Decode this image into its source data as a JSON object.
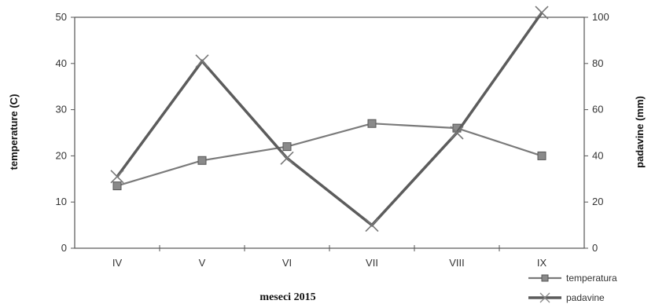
{
  "chart_data": {
    "type": "line",
    "title": "",
    "xlabel": "meseci 2015",
    "ylabel": "temperature (C)",
    "ylabel_right": "padavine (mm)",
    "categories": [
      "IV",
      "V",
      "VI",
      "VII",
      "VIII",
      "IX"
    ],
    "ylim": [
      0,
      50
    ],
    "yticks": [
      "0",
      "10",
      "20",
      "30",
      "40",
      "50"
    ],
    "ylim_right": [
      0,
      100
    ],
    "yticks_right": [
      "0",
      "20",
      "40",
      "60",
      "80",
      "100"
    ],
    "grid": false,
    "legend_position": "bottom-right",
    "series": [
      {
        "name": "temperatura",
        "axis": "left",
        "marker": "square",
        "color": "#7a7a7a",
        "values": [
          13.5,
          19,
          22,
          27,
          26,
          20
        ]
      },
      {
        "name": "padavine",
        "axis": "right",
        "marker": "x",
        "color": "#5c5c5c",
        "values": [
          31,
          81,
          39,
          10,
          50,
          102
        ]
      }
    ]
  }
}
